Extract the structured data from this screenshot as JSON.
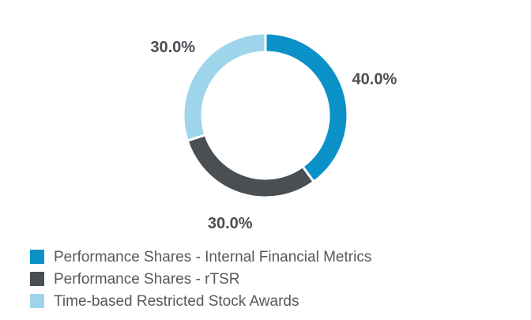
{
  "chart_data": {
    "type": "donut",
    "categories": [
      "Performance Shares - Internal Financial Metrics",
      "Performance Shares - rTSR",
      "Time-based Restricted Stock Awards"
    ],
    "values": [
      40,
      30,
      30
    ],
    "value_labels": [
      "40.0%",
      "30.0%",
      "30.0%"
    ],
    "colors": [
      "#0a91c8",
      "#4a4f54",
      "#9fd5ea"
    ],
    "legend": "bottom-left"
  }
}
